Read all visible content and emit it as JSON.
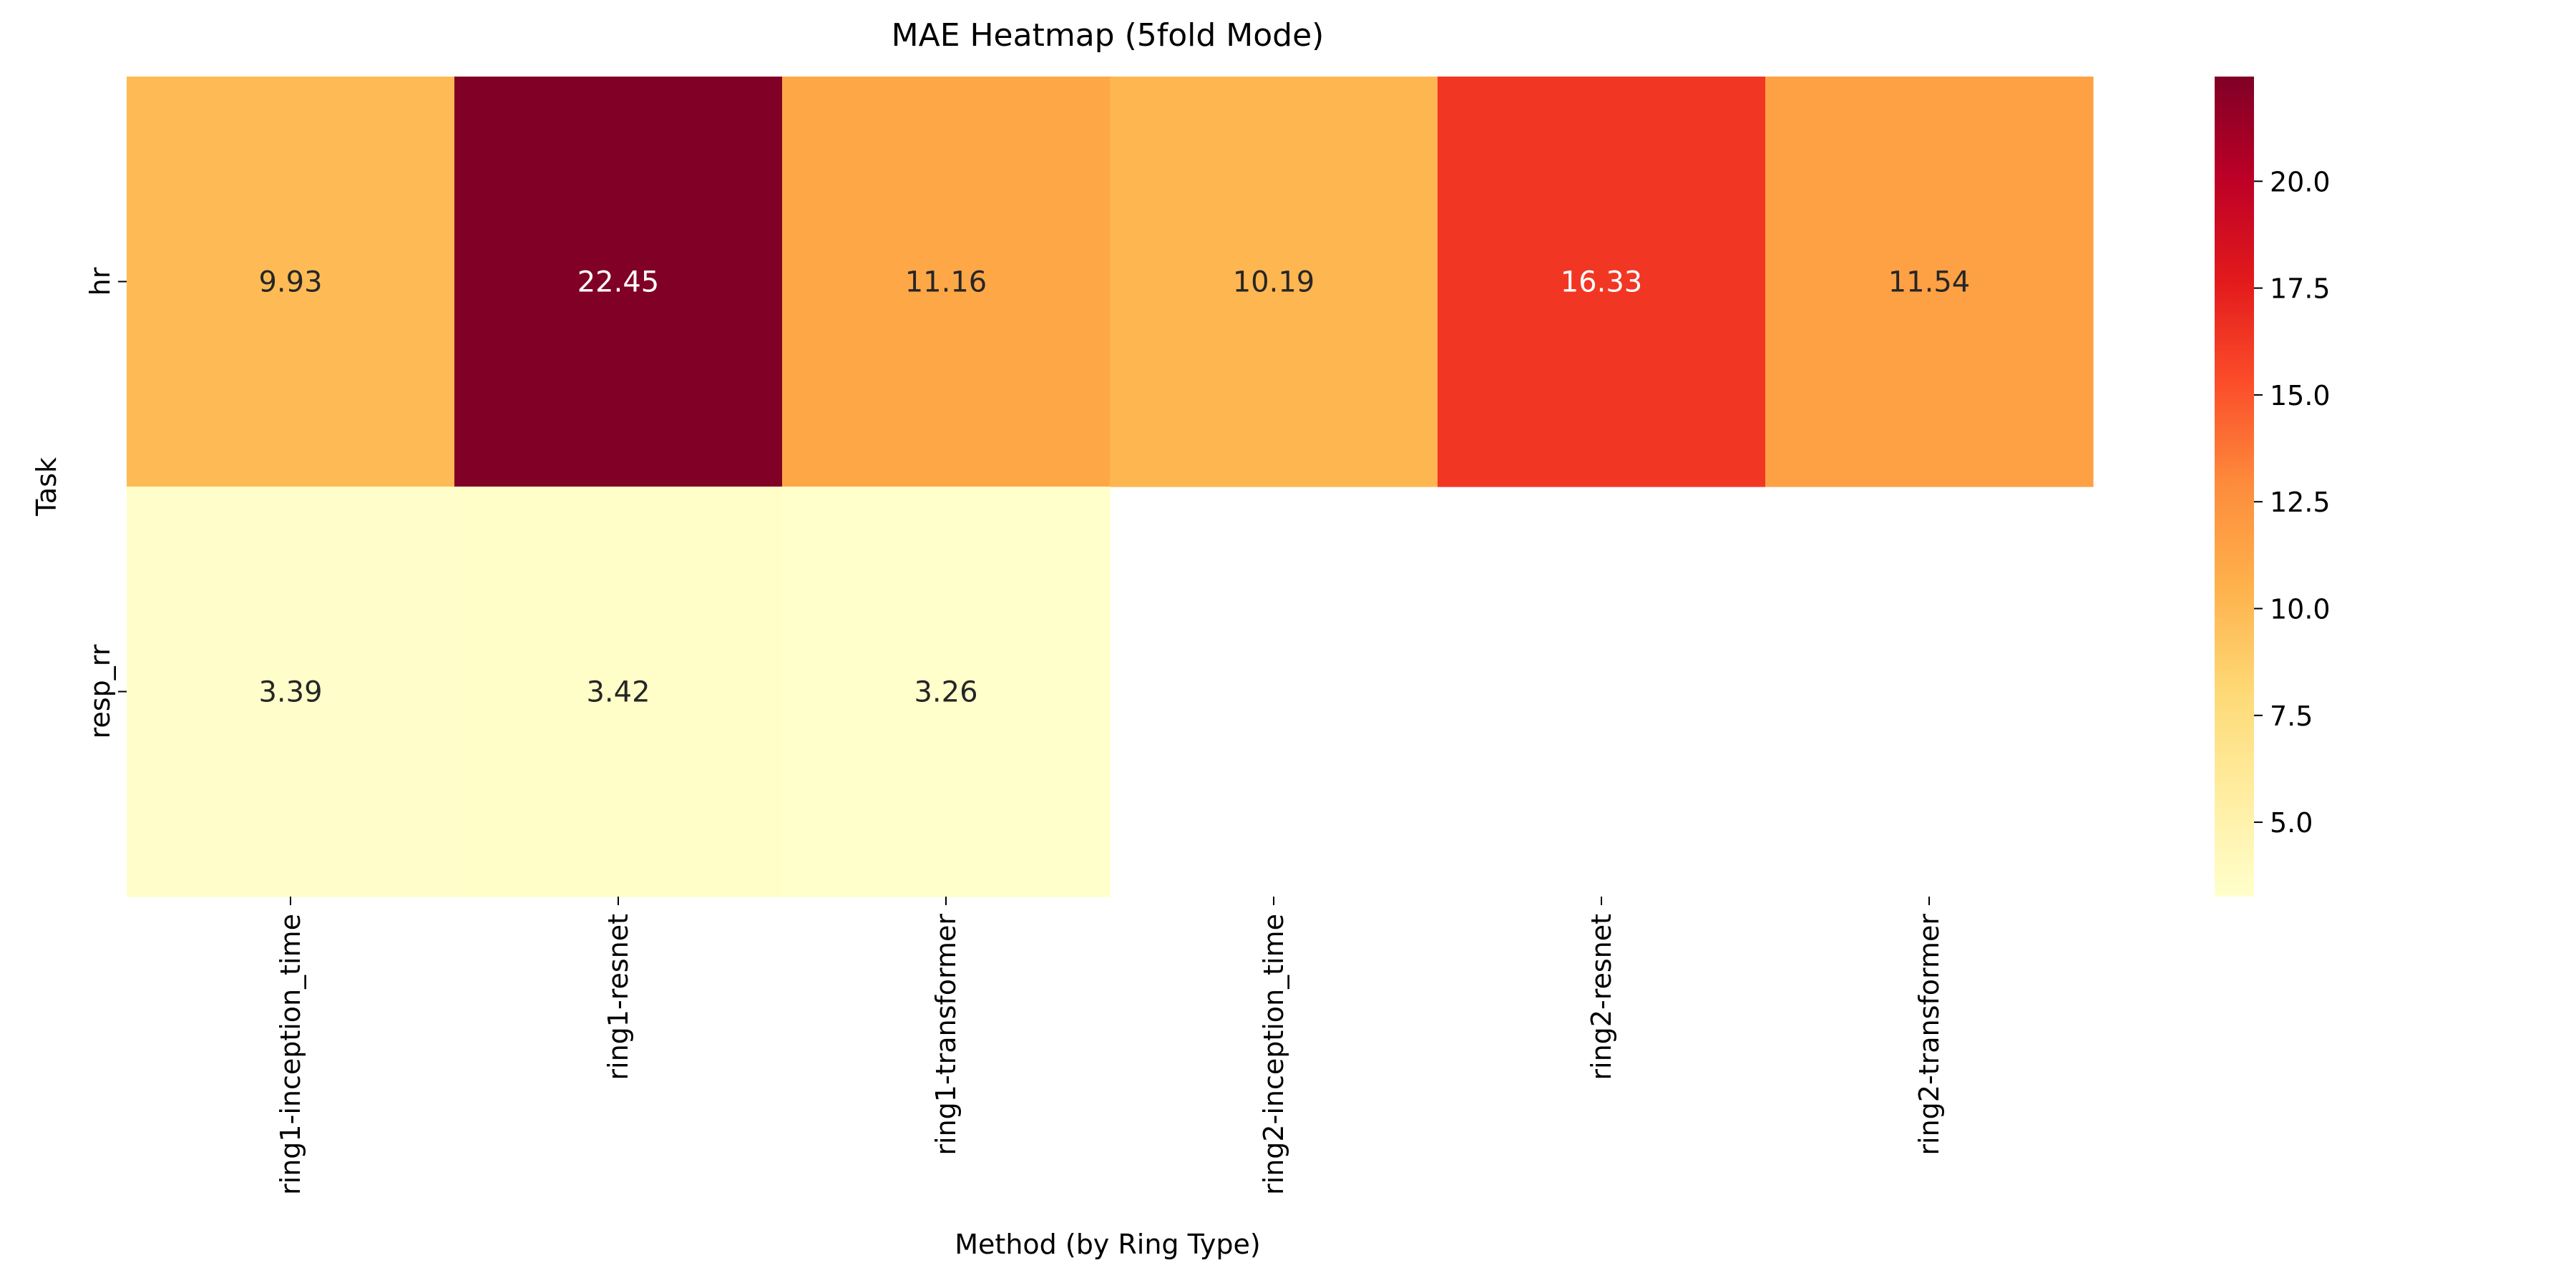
{
  "chart_data": {
    "type": "heatmap",
    "title": "MAE Heatmap (5fold Mode)",
    "xlabel": "Method (by Ring Type)",
    "ylabel": "Task",
    "x_categories": [
      "ring1-inception_time",
      "ring1-resnet",
      "ring1-transformer",
      "ring2-inception_time",
      "ring2-resnet",
      "ring2-transformer"
    ],
    "y_categories": [
      "hr",
      "resp_rr"
    ],
    "values": [
      [
        9.93,
        22.45,
        11.16,
        10.19,
        16.33,
        11.54
      ],
      [
        3.39,
        3.42,
        3.26,
        null,
        null,
        null
      ]
    ],
    "annotations": [
      [
        "9.93",
        "22.45",
        "11.16",
        "10.19",
        "16.33",
        "11.54"
      ],
      [
        "3.39",
        "3.42",
        "3.26",
        "",
        "",
        ""
      ]
    ],
    "colormap": "YlOrRd",
    "colormap_stops": [
      "#ffffcc",
      "#ffeda0",
      "#fed976",
      "#feb24c",
      "#fd8d3c",
      "#fc4e2a",
      "#e31a1c",
      "#bd0026",
      "#800026"
    ],
    "vmin": 3.26,
    "vmax": 22.45,
    "colorbar_ticks": [
      "5.0",
      "7.5",
      "10.0",
      "12.5",
      "15.0",
      "17.5",
      "20.0"
    ],
    "text_color_dark": "#262626",
    "text_color_light": "#ffffff"
  }
}
